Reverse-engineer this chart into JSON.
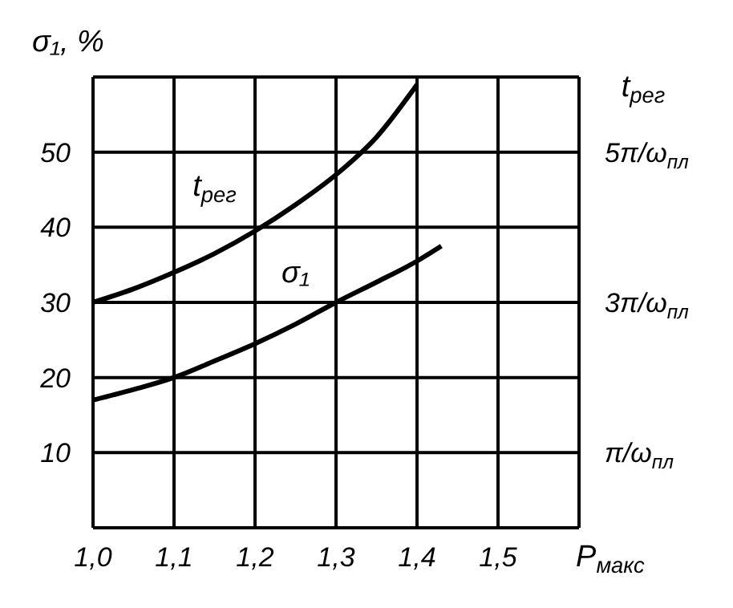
{
  "chart_data": {
    "type": "line",
    "xlabel": "P$_{макс}$",
    "ylabel": "σ₁, %",
    "y2label": "t$_{рег}$",
    "xlim": [
      1.0,
      1.6
    ],
    "xticks": [
      {
        "value": 1.0,
        "label": "1,0"
      },
      {
        "value": 1.1,
        "label": "1,1"
      },
      {
        "value": 1.2,
        "label": "1,2"
      },
      {
        "value": 1.3,
        "label": "1,3"
      },
      {
        "value": 1.4,
        "label": "1,4"
      },
      {
        "value": 1.5,
        "label": "1,5"
      },
      {
        "value": 1.6,
        "label": null
      }
    ],
    "ylim": [
      0,
      60
    ],
    "yticks": [
      {
        "value": 0,
        "label": null
      },
      10,
      20,
      30,
      40,
      50,
      {
        "value": 60,
        "label": null
      }
    ],
    "y2lim": [
      0,
      6
    ],
    "y2ticks": [
      {
        "value": 1,
        "label": "π/ω$_{пл}$"
      },
      {
        "value": 3,
        "label": "3π/ω$_{пл}$"
      },
      {
        "value": 5,
        "label": "5π/ω$_{пл}$"
      }
    ],
    "grid": true,
    "legend": false,
    "marker": "none",
    "line_style": "solid",
    "series": [
      {
        "name": "t$_{рег}$",
        "color": "#000000",
        "axis": "y2",
        "x": [
          1.0,
          1.05,
          1.1,
          1.15,
          1.2,
          1.25,
          1.3,
          1.35,
          1.4
        ],
        "values": [
          3.0,
          3.18,
          3.4,
          3.65,
          3.95,
          4.3,
          4.7,
          5.2,
          5.9
        ]
      },
      {
        "name": "σ₁",
        "color": "#000000",
        "x": [
          1.0,
          1.05,
          1.1,
          1.15,
          1.2,
          1.25,
          1.3,
          1.35,
          1.4,
          1.43
        ],
        "values": [
          17,
          18.4,
          20,
          22.2,
          24.5,
          27.1,
          30,
          32.7,
          35.5,
          37.5
        ]
      }
    ]
  }
}
